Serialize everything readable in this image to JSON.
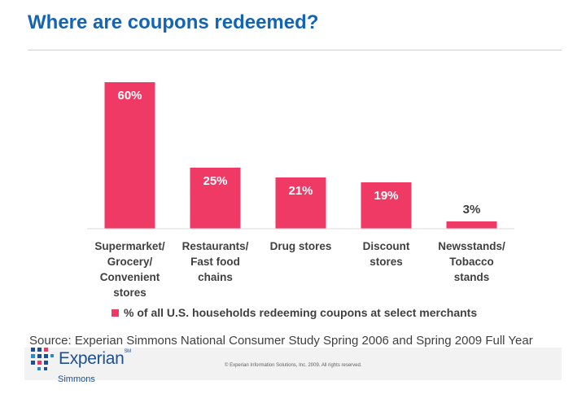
{
  "title": "Where are coupons redeemed?",
  "colors": {
    "title": "#1464b4",
    "bar": "#ee3a65",
    "logo": "#1d4f91"
  },
  "chart_data": {
    "type": "bar",
    "categories": [
      [
        "Supermarket/",
        "Grocery/",
        "Convenient",
        "stores"
      ],
      [
        "Restaurants/",
        "Fast food",
        "chains"
      ],
      [
        "Drug stores"
      ],
      [
        "Discount",
        "stores"
      ],
      [
        "Newsstands/",
        "Tobacco",
        "stands"
      ]
    ],
    "values": [
      60,
      25,
      21,
      19,
      3
    ],
    "data_labels": [
      "60%",
      "25%",
      "21%",
      "19%",
      "3%"
    ],
    "series": [
      {
        "name": "% of all U.S. households redeeming coupons at select merchants",
        "values": [
          60,
          25,
          21,
          19,
          3
        ]
      }
    ],
    "ylim": [
      0,
      63
    ],
    "grid": false,
    "legend_position": "bottom"
  },
  "legend": {
    "label": "% of all U.S. households redeeming coupons at select merchants"
  },
  "source": "Source: Experian Simmons National Consumer Study Spring 2006 and Spring 2009 Full Year",
  "footer": {
    "logo_name": "Experian",
    "logo_tm": "SM",
    "logo_sub": "Simmons",
    "copyright": "© Experian Information Solutions, Inc. 2009.  All rights reserved."
  }
}
